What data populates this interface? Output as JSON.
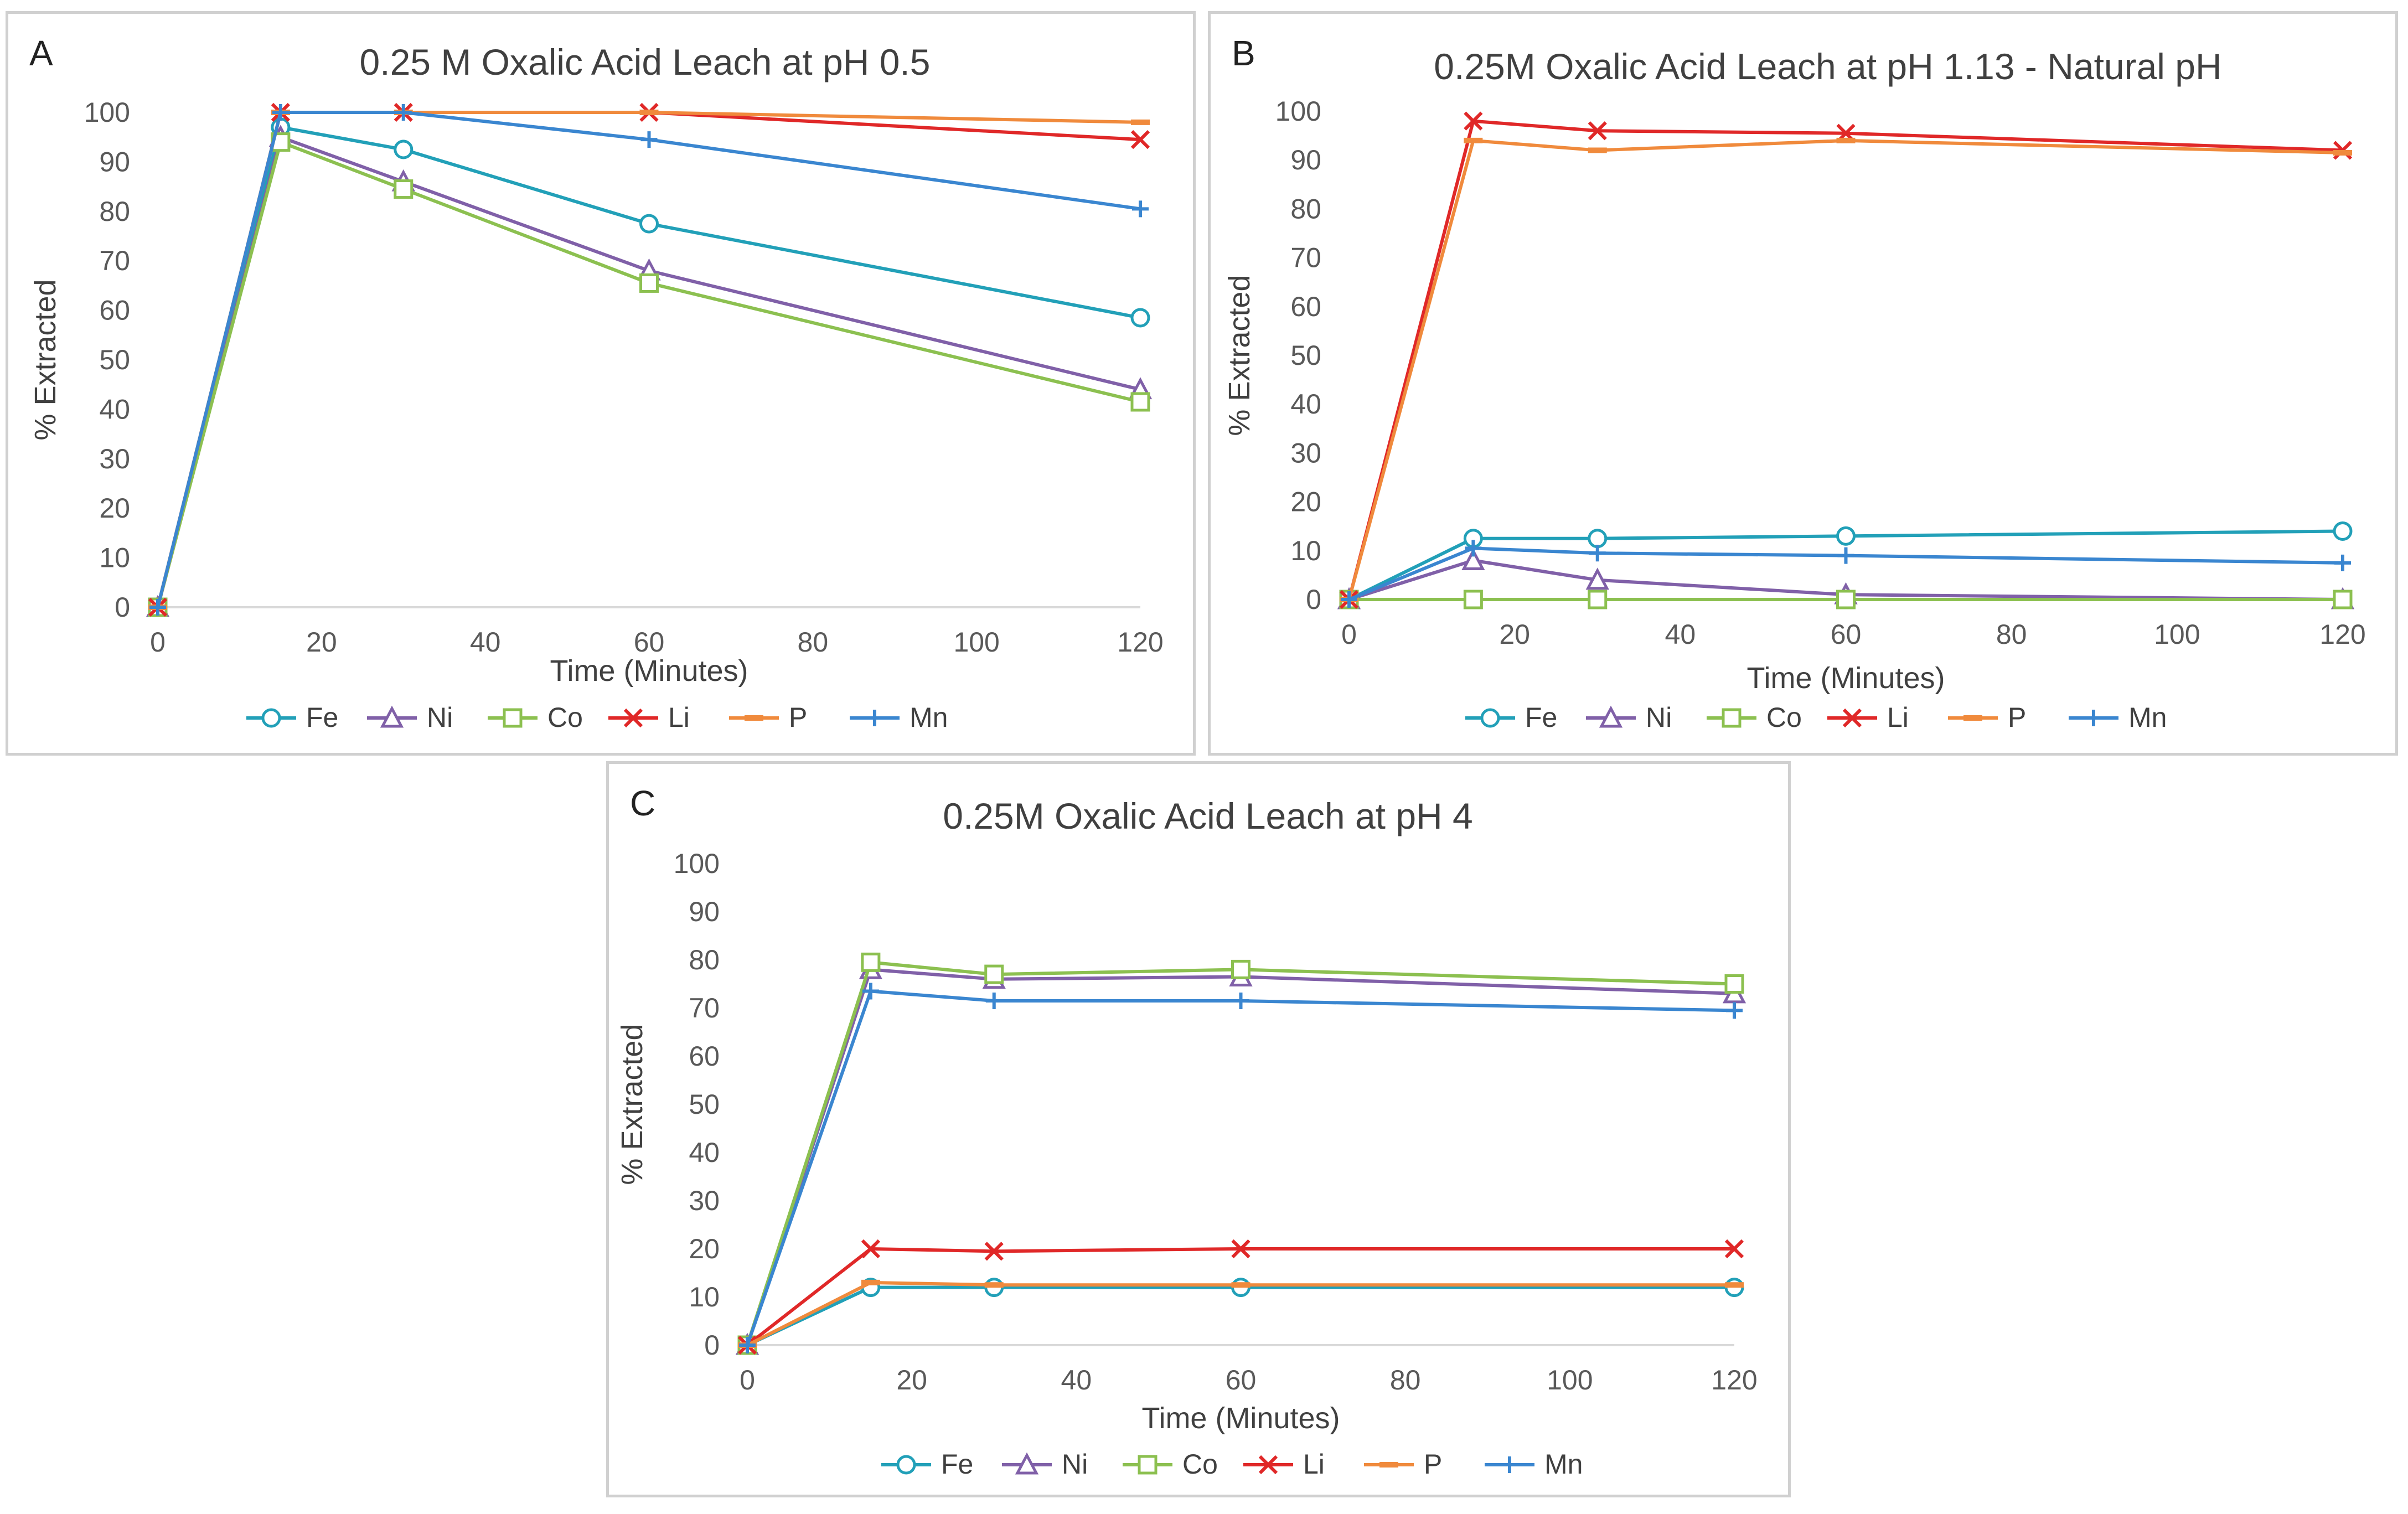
{
  "colors": {
    "Fe": "#22a0b8",
    "Ni": "#8060a8",
    "Co": "#8cc050",
    "Li": "#e02828",
    "P": "#f08a3c",
    "Mn": "#3a86d0"
  },
  "legend_order": [
    "Fe",
    "Ni",
    "Co",
    "Li",
    "P",
    "Mn"
  ],
  "chart_data": [
    {
      "panel": "A",
      "type": "line",
      "title": "0.25 M Oxalic Acid Leach at pH 0.5",
      "xlabel": "Time (Minutes)",
      "ylabel": "% Extracted",
      "xlim": [
        0,
        120
      ],
      "ylim": [
        0,
        100
      ],
      "xticks": [
        0,
        20,
        40,
        60,
        80,
        100,
        120
      ],
      "yticks": [
        0,
        10,
        20,
        30,
        40,
        50,
        60,
        70,
        80,
        90,
        100
      ],
      "x": [
        0,
        15,
        30,
        60,
        120
      ],
      "series": [
        {
          "name": "Fe",
          "marker": "circle",
          "values": [
            0,
            97,
            92.5,
            77.5,
            58.5
          ]
        },
        {
          "name": "Ni",
          "marker": "triangle",
          "values": [
            0,
            95,
            86,
            68,
            44
          ]
        },
        {
          "name": "Co",
          "marker": "square",
          "values": [
            0,
            94,
            84.5,
            65.5,
            41.5
          ]
        },
        {
          "name": "Li",
          "marker": "x",
          "values": [
            0,
            100,
            100,
            100,
            94.5
          ]
        },
        {
          "name": "P",
          "marker": "dash",
          "values": [
            0,
            100,
            100,
            100,
            98
          ]
        },
        {
          "name": "Mn",
          "marker": "plus",
          "values": [
            0,
            100,
            100,
            94.5,
            80.5
          ]
        }
      ]
    },
    {
      "panel": "B",
      "type": "line",
      "title": "0.25M Oxalic Acid Leach at pH 1.13 - Natural pH",
      "xlabel": "Time (Minutes)",
      "ylabel": "% Extracted",
      "xlim": [
        0,
        120
      ],
      "ylim": [
        0,
        100
      ],
      "xticks": [
        0,
        20,
        40,
        60,
        80,
        100,
        120
      ],
      "yticks": [
        0,
        10,
        20,
        30,
        40,
        50,
        60,
        70,
        80,
        90,
        100
      ],
      "x": [
        0,
        15,
        30,
        60,
        120
      ],
      "series": [
        {
          "name": "Fe",
          "marker": "circle",
          "values": [
            0,
            12.5,
            12.5,
            13,
            14
          ]
        },
        {
          "name": "Ni",
          "marker": "triangle",
          "values": [
            0,
            8,
            4,
            1,
            0
          ]
        },
        {
          "name": "Co",
          "marker": "square",
          "values": [
            0,
            0,
            0,
            0,
            0
          ]
        },
        {
          "name": "Li",
          "marker": "x",
          "values": [
            0,
            98,
            96,
            95.5,
            92
          ]
        },
        {
          "name": "P",
          "marker": "dash",
          "values": [
            0,
            94,
            92,
            94,
            91.5
          ]
        },
        {
          "name": "Mn",
          "marker": "plus",
          "values": [
            0,
            10.5,
            9.5,
            9,
            7.5
          ]
        }
      ]
    },
    {
      "panel": "C",
      "type": "line",
      "title": "0.25M Oxalic Acid Leach at pH 4",
      "xlabel": "Time (Minutes)",
      "ylabel": "% Extracted",
      "xlim": [
        0,
        120
      ],
      "ylim": [
        0,
        100
      ],
      "xticks": [
        0,
        20,
        40,
        60,
        80,
        100,
        120
      ],
      "yticks": [
        0,
        10,
        20,
        30,
        40,
        50,
        60,
        70,
        80,
        90,
        100
      ],
      "x": [
        0,
        15,
        30,
        60,
        120
      ],
      "series": [
        {
          "name": "Fe",
          "marker": "circle",
          "values": [
            0,
            12,
            12,
            12,
            12
          ]
        },
        {
          "name": "Ni",
          "marker": "triangle",
          "values": [
            0,
            78,
            76,
            76.5,
            73
          ]
        },
        {
          "name": "Co",
          "marker": "square",
          "values": [
            0,
            79.5,
            77,
            78,
            75
          ]
        },
        {
          "name": "Li",
          "marker": "x",
          "values": [
            0,
            20,
            19.5,
            20,
            20
          ]
        },
        {
          "name": "P",
          "marker": "dash",
          "values": [
            0,
            13,
            12.5,
            12.5,
            12.5
          ]
        },
        {
          "name": "Mn",
          "marker": "plus",
          "values": [
            0,
            73.5,
            71.5,
            71.5,
            69.5
          ]
        }
      ]
    }
  ]
}
